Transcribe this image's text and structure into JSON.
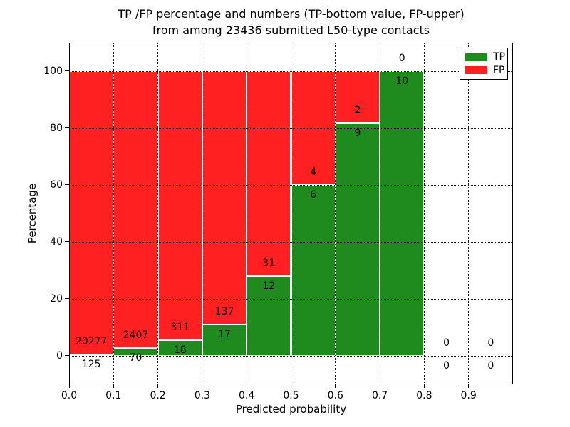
{
  "title": {
    "line1": "TP /FP percentage and numbers (TP-bottom value, FP-upper)",
    "line2": "from among 23436 submitted L50-type contacts"
  },
  "axes": {
    "xlabel": "Predicted probability",
    "ylabel": "Percentage",
    "x_ticks": [
      "0.0",
      "0.1",
      "0.2",
      "0.3",
      "0.4",
      "0.5",
      "0.6",
      "0.7",
      "0.8",
      "0.9"
    ],
    "y_ticks": [
      0,
      20,
      40,
      60,
      80,
      100
    ]
  },
  "legend": {
    "items": [
      {
        "label": "TP",
        "color": "#1f8b1f"
      },
      {
        "label": "FP",
        "color": "#ff2121"
      }
    ]
  },
  "chart_data": {
    "type": "bar",
    "stacked": true,
    "normalized_to_percent": true,
    "title": "TP /FP percentage and numbers (TP-bottom value, FP-upper) from among 23436 submitted L50-type contacts",
    "xlabel": "Predicted probability",
    "ylabel": "Percentage",
    "total_contacts": 23436,
    "bin_width": 0.1,
    "bin_starts": [
      0.0,
      0.1,
      0.2,
      0.3,
      0.4,
      0.5,
      0.6,
      0.7,
      0.8,
      0.9
    ],
    "series": [
      {
        "name": "TP",
        "color": "#1f8b1f",
        "counts": [
          125,
          70,
          18,
          17,
          12,
          6,
          9,
          10,
          0,
          0
        ]
      },
      {
        "name": "FP",
        "color": "#ff2121",
        "counts": [
          20277,
          2407,
          311,
          137,
          31,
          4,
          2,
          0,
          0,
          0
        ]
      }
    ],
    "tp_percent_of_bin": [
      0.61,
      2.83,
      5.47,
      11.04,
      27.91,
      60.0,
      81.82,
      100.0,
      null,
      null
    ],
    "xlim": [
      0.0,
      1.0
    ],
    "ylim": [
      -10,
      110
    ],
    "grid": "dotted",
    "grid_color": "#000000",
    "bar_edge_color": "#ffffff",
    "legend_position": "upper right"
  }
}
